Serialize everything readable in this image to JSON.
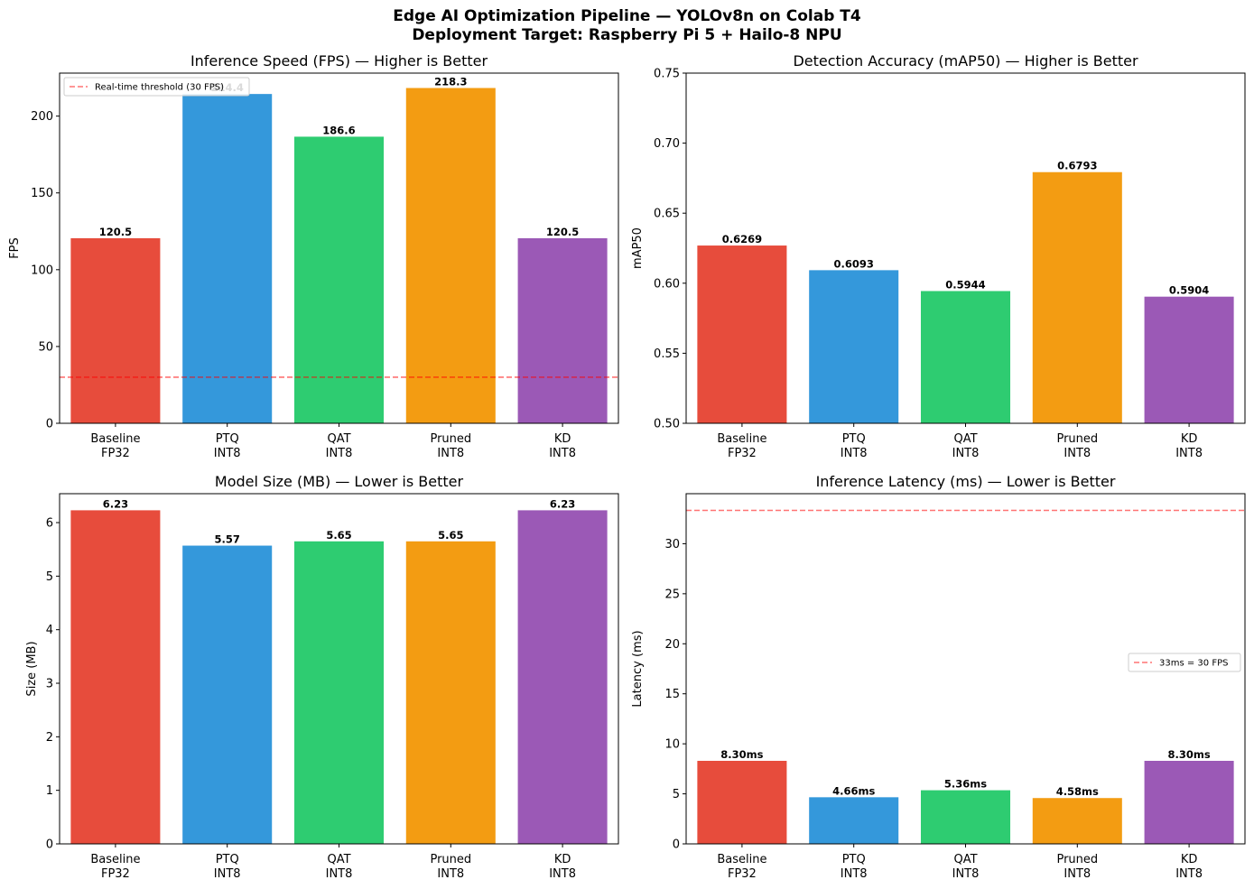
{
  "figure": {
    "title_line1": "Edge AI Optimization Pipeline — YOLOv8n on Colab T4",
    "title_line2": "Deployment Target: Raspberry Pi 5 + Hailo-8 NPU"
  },
  "colors": [
    "#e74c3c",
    "#3498db",
    "#2ecc71",
    "#f39c12",
    "#9b59b6"
  ],
  "chart_data": [
    {
      "type": "bar",
      "title": "Inference Speed (FPS) — Higher is Better",
      "categories": [
        "Baseline\nFP32",
        "PTQ\nINT8",
        "QAT\nINT8",
        "Pruned\nINT8",
        "KD\nINT8"
      ],
      "values": [
        120.5,
        214.4,
        186.6,
        218.3,
        120.5
      ],
      "value_labels": [
        "120.5",
        "214.4",
        "186.6",
        "218.3",
        "120.5"
      ],
      "xlabel": "",
      "ylabel": "FPS",
      "ylim": [
        0,
        228
      ],
      "yticks": [
        0,
        50,
        100,
        150,
        200
      ],
      "reference_line": {
        "value": 30,
        "label": "Real-time threshold (30 FPS)",
        "color": "#ff0000"
      },
      "legend": "upper-left"
    },
    {
      "type": "bar",
      "title": "Detection Accuracy (mAP50) — Higher is Better",
      "categories": [
        "Baseline\nFP32",
        "PTQ\nINT8",
        "QAT\nINT8",
        "Pruned\nINT8",
        "KD\nINT8"
      ],
      "values": [
        0.6269,
        0.6093,
        0.5944,
        0.6793,
        0.5904
      ],
      "value_labels": [
        "0.6269",
        "0.6093",
        "0.5944",
        "0.6793",
        "0.5904"
      ],
      "xlabel": "",
      "ylabel": "mAP50",
      "ylim": [
        0.5,
        0.75
      ],
      "yticks": [
        0.5,
        0.55,
        0.6,
        0.65,
        0.7,
        0.75
      ],
      "ytick_labels": [
        "0.50",
        "0.55",
        "0.60",
        "0.65",
        "0.70",
        "0.75"
      ]
    },
    {
      "type": "bar",
      "title": "Model Size (MB) — Lower is Better",
      "categories": [
        "Baseline\nFP32",
        "PTQ\nINT8",
        "QAT\nINT8",
        "Pruned\nINT8",
        "KD\nINT8"
      ],
      "values": [
        6.23,
        5.57,
        5.65,
        5.65,
        6.23
      ],
      "value_labels": [
        "6.23",
        "5.57",
        "5.65",
        "5.65",
        "6.23"
      ],
      "xlabel": "",
      "ylabel": "Size (MB)",
      "ylim": [
        0,
        6.54
      ],
      "yticks": [
        0,
        1,
        2,
        3,
        4,
        5,
        6
      ]
    },
    {
      "type": "bar",
      "title": "Inference Latency (ms) — Lower is Better",
      "categories": [
        "Baseline\nFP32",
        "PTQ\nINT8",
        "QAT\nINT8",
        "Pruned\nINT8",
        "KD\nINT8"
      ],
      "values": [
        8.3,
        4.66,
        5.36,
        4.58,
        8.3
      ],
      "value_labels": [
        "8.30ms",
        "4.66ms",
        "5.36ms",
        "4.58ms",
        "8.30ms"
      ],
      "xlabel": "",
      "ylabel": "Latency (ms)",
      "ylim": [
        0,
        35
      ],
      "yticks": [
        0,
        5,
        10,
        15,
        20,
        25,
        30
      ],
      "reference_line": {
        "value": 33.33,
        "label": "33ms = 30 FPS",
        "color": "#ff0000"
      },
      "legend": "center-right"
    }
  ]
}
